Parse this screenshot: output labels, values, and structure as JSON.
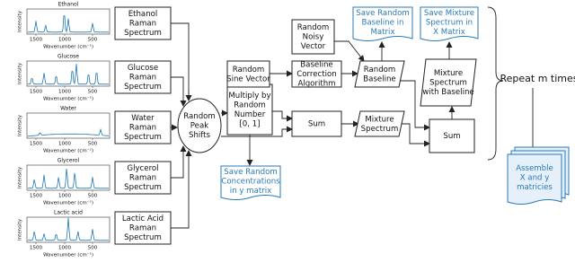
{
  "spectra": [
    {
      "title": "Ethanol",
      "y_label": "Intensity",
      "x_ticks": [
        "1500",
        "1000",
        "500"
      ],
      "x_label": "Wavenumber (cm⁻¹)"
    },
    {
      "title": "Glucose",
      "y_label": "Intensity",
      "x_ticks": [
        "1500",
        "1000",
        "500"
      ],
      "x_label": "Wavenumber (cm⁻¹)"
    },
    {
      "title": "Water",
      "y_label": "Intensity",
      "x_ticks": [
        "1500",
        "1000",
        "500"
      ],
      "x_label": "Wavenumber (cm⁻¹)"
    },
    {
      "title": "Glycerol",
      "y_label": "Intensity",
      "x_ticks": [
        "1500",
        "1000",
        "500"
      ],
      "x_label": "Wavenumber (cm⁻¹)"
    },
    {
      "title": "Lactic acid",
      "y_label": "Intensity",
      "x_ticks": [
        "1500",
        "1000",
        "500"
      ],
      "x_label": "Wavenumber (cm⁻¹)"
    }
  ],
  "nodes": [
    {
      "lines": [
        "Ethanol",
        "Raman",
        "Spectrum"
      ]
    },
    {
      "lines": [
        "Glucose",
        "Raman",
        "Spectrum"
      ]
    },
    {
      "lines": [
        "Water",
        "Raman",
        "Spectrum"
      ]
    },
    {
      "lines": [
        "Glycerol",
        "Raman",
        "Spectrum"
      ]
    },
    {
      "lines": [
        "Lactic Acid",
        "Raman",
        "Spectrum"
      ]
    },
    {
      "lines": [
        "Random",
        "Peak",
        "Shifts"
      ]
    },
    {
      "lines": [
        "Multiply by",
        "Random",
        "Number",
        "[0, 1]"
      ]
    },
    {
      "lines": [
        "Save Random",
        "Concentrations",
        "in y matrix"
      ]
    },
    {
      "lines": [
        "Random",
        "Sine Vector"
      ]
    },
    {
      "lines": [
        "Random",
        "Noisy",
        "Vector"
      ]
    },
    {
      "lines": [
        "Baseline",
        "Correction",
        "Algorithm"
      ]
    },
    {
      "lines": [
        "Sum"
      ]
    },
    {
      "lines": [
        "Mixture",
        "Spectrum"
      ]
    },
    {
      "lines": [
        "Random",
        "Baseline"
      ]
    },
    {
      "lines": [
        "Save Random",
        "Baseline in",
        "Matrix"
      ]
    },
    {
      "lines": [
        "Save Mixture",
        "Spectrum in",
        "X Matrix"
      ]
    },
    {
      "lines": [
        "Mixture",
        "Spectrum",
        "with Baseline"
      ]
    },
    {
      "lines": [
        "Sum"
      ]
    },
    {
      "lines": [
        "Assemble",
        "X and y",
        "matricies"
      ]
    }
  ],
  "repeat_label": "Repeat m times"
}
